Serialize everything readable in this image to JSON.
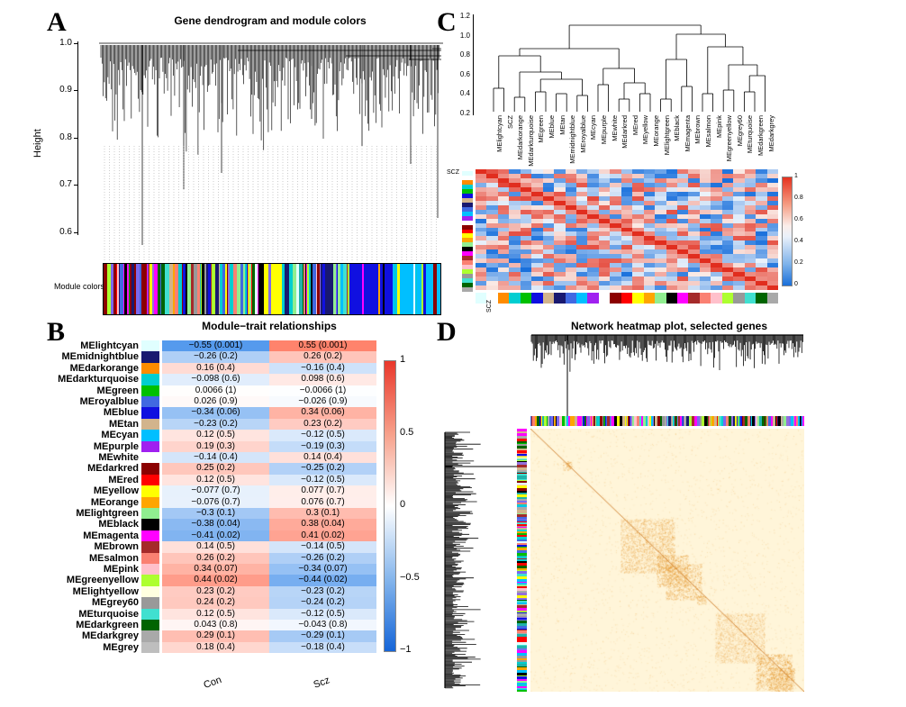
{
  "panels": {
    "a": {
      "letter": "A",
      "title": "Gene dendrogram and module colors",
      "ylabel": "Height",
      "yticks": [
        "1.0",
        "0.9",
        "0.8",
        "0.7",
        "0.6"
      ],
      "module_label": "Module colors"
    },
    "b": {
      "letter": "B",
      "title": "Module−trait relationships",
      "xlabels": [
        "Con",
        "Scz"
      ],
      "colorbar_ticks": [
        "1",
        "0.5",
        "0",
        "−0.5",
        "−1"
      ]
    },
    "c": {
      "letter": "C",
      "yticks": [
        "1.2",
        "1.0",
        "0.8",
        "0.6",
        "0.4",
        "0.2"
      ],
      "row_label": "SCZ",
      "col_label": "SCZ",
      "colorbar_ticks": [
        "1",
        "0.8",
        "0.6",
        "0.4",
        "0.2",
        "0"
      ],
      "leaf_labels": [
        "MElightcyan",
        "SCZ",
        "MEdarkorange",
        "MEdarkturquoise",
        "MEgreen",
        "MEblue",
        "MEtan",
        "MEmidnightblue",
        "MEroyalblue",
        "MEcyan",
        "MEpurple",
        "MEwhite",
        "MEdarkred",
        "MEred",
        "MEyellow",
        "MEorange",
        "MElightgreen",
        "MEblack",
        "MEmagenta",
        "MEbrown",
        "MEsalmon",
        "MEpink",
        "MEgreenyellow",
        "MEgrey60",
        "MEturquoise",
        "MEdarkgreen",
        "MEdarkgrey"
      ]
    },
    "d": {
      "letter": "D",
      "title": "Network heatmap plot, selected genes"
    }
  },
  "chart_data": [
    {
      "type": "table",
      "title": "Module−trait relationships",
      "columns": [
        "Con",
        "Scz"
      ],
      "rows": [
        {
          "module": "MElightcyan",
          "color": "#e0ffff",
          "con": "−0.55 (0.001)",
          "scz": "0.55 (0.001)",
          "r": 0.55
        },
        {
          "module": "MEmidnightblue",
          "color": "#191970",
          "con": "−0.26 (0.2)",
          "scz": "0.26 (0.2)",
          "r": 0.26
        },
        {
          "module": "MEdarkorange",
          "color": "#ff8c00",
          "con": "0.16 (0.4)",
          "scz": "−0.16 (0.4)",
          "r": -0.16
        },
        {
          "module": "MEdarkturquoise",
          "color": "#00ced1",
          "con": "−0.098 (0.6)",
          "scz": "0.098 (0.6)",
          "r": 0.098
        },
        {
          "module": "MEgreen",
          "color": "#00c000",
          "con": "0.0066 (1)",
          "scz": "−0.0066 (1)",
          "r": -0.0066
        },
        {
          "module": "MEroyalblue",
          "color": "#4169e1",
          "con": "0.026 (0.9)",
          "scz": "−0.026 (0.9)",
          "r": -0.026
        },
        {
          "module": "MEblue",
          "color": "#1010e0",
          "con": "−0.34 (0.06)",
          "scz": "0.34 (0.06)",
          "r": 0.34
        },
        {
          "module": "MEtan",
          "color": "#d2b48c",
          "con": "−0.23 (0.2)",
          "scz": "0.23 (0.2)",
          "r": 0.23
        },
        {
          "module": "MEcyan",
          "color": "#00bfff",
          "con": "0.12 (0.5)",
          "scz": "−0.12 (0.5)",
          "r": -0.12
        },
        {
          "module": "MEpurple",
          "color": "#a020f0",
          "con": "0.19 (0.3)",
          "scz": "−0.19 (0.3)",
          "r": -0.19
        },
        {
          "module": "MEwhite",
          "color": "#ffffff",
          "con": "−0.14 (0.4)",
          "scz": "0.14 (0.4)",
          "r": 0.14
        },
        {
          "module": "MEdarkred",
          "color": "#8b0000",
          "con": "0.25 (0.2)",
          "scz": "−0.25 (0.2)",
          "r": -0.25
        },
        {
          "module": "MEred",
          "color": "#ff0000",
          "con": "0.12 (0.5)",
          "scz": "−0.12 (0.5)",
          "r": -0.12
        },
        {
          "module": "MEyellow",
          "color": "#ffff00",
          "con": "−0.077 (0.7)",
          "scz": "0.077 (0.7)",
          "r": 0.077
        },
        {
          "module": "MEorange",
          "color": "#ffa500",
          "con": "−0.076 (0.7)",
          "scz": "0.076 (0.7)",
          "r": 0.076
        },
        {
          "module": "MElightgreen",
          "color": "#90ee90",
          "con": "−0.3 (0.1)",
          "scz": "0.3 (0.1)",
          "r": 0.3
        },
        {
          "module": "MEblack",
          "color": "#000000",
          "con": "−0.38 (0.04)",
          "scz": "0.38 (0.04)",
          "r": 0.38
        },
        {
          "module": "MEmagenta",
          "color": "#ff00ff",
          "con": "−0.41 (0.02)",
          "scz": "0.41 (0.02)",
          "r": 0.41
        },
        {
          "module": "MEbrown",
          "color": "#a52a2a",
          "con": "0.14 (0.5)",
          "scz": "−0.14 (0.5)",
          "r": -0.14
        },
        {
          "module": "MEsalmon",
          "color": "#fa8072",
          "con": "0.26 (0.2)",
          "scz": "−0.26 (0.2)",
          "r": -0.26
        },
        {
          "module": "MEpink",
          "color": "#ffc0cb",
          "con": "0.34 (0.07)",
          "scz": "−0.34 (0.07)",
          "r": -0.34
        },
        {
          "module": "MEgreenyellow",
          "color": "#adff2f",
          "con": "0.44 (0.02)",
          "scz": "−0.44 (0.02)",
          "r": -0.44
        },
        {
          "module": "MElightyellow",
          "color": "#ffffe0",
          "con": "0.23 (0.2)",
          "scz": "−0.23 (0.2)",
          "r": -0.23
        },
        {
          "module": "MEgrey60",
          "color": "#999999",
          "con": "0.24 (0.2)",
          "scz": "−0.24 (0.2)",
          "r": -0.24
        },
        {
          "module": "MEturquoise",
          "color": "#40e0d0",
          "con": "0.12 (0.5)",
          "scz": "−0.12 (0.5)",
          "r": -0.12
        },
        {
          "module": "MEdarkgreen",
          "color": "#006400",
          "con": "0.043 (0.8)",
          "scz": "−0.043 (0.8)",
          "r": -0.043
        },
        {
          "module": "MEdarkgrey",
          "color": "#a9a9a9",
          "con": "0.29 (0.1)",
          "scz": "−0.29 (0.1)",
          "r": -0.29
        },
        {
          "module": "MEgrey",
          "color": "#bebebe",
          "con": "0.18 (0.4)",
          "scz": "−0.18 (0.4)",
          "r": -0.18
        }
      ],
      "colorbar_range": [
        -1,
        1
      ]
    }
  ]
}
